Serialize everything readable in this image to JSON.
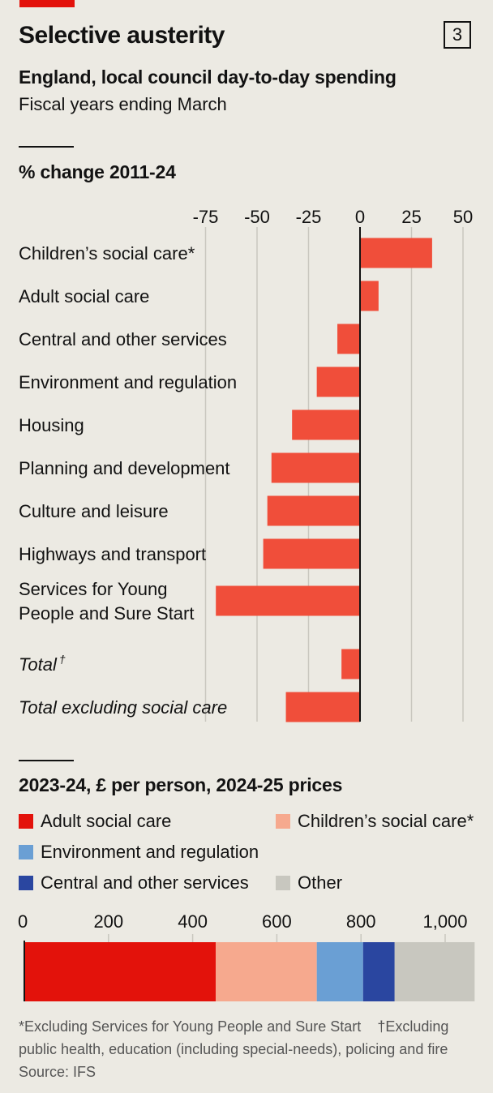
{
  "header": {
    "title": "Selective austerity",
    "badge": "3",
    "subtitle": "England, local council day-to-day spending",
    "subsubtitle": "Fiscal years ending March"
  },
  "colors": {
    "accent": "#E3120B",
    "bar_red": "#F04E3A",
    "adult_social_care": "#E3120B",
    "childrens_social_care": "#F6A98E",
    "environment_regulation": "#6A9FD4",
    "central_other": "#2A46A0",
    "other": "#C8C7BF"
  },
  "footnotes": {
    "note1": "*Excluding Services for Young People and Sure Start",
    "note2": "†Excluding public health, education (including special-needs), policing and fire",
    "source": "Source: IFS"
  },
  "chart_data": [
    {
      "type": "bar",
      "orientation": "horizontal",
      "title": "% change 2011-24",
      "xlim": [
        -75,
        50
      ],
      "ticks": [
        "-75",
        "-50",
        "-25",
        "0",
        "25",
        "50"
      ],
      "tick_values": [
        -75,
        -50,
        -25,
        0,
        25,
        50
      ],
      "categories": [
        "Children’s social care*",
        "Adult social care",
        "Central and other services",
        "Environment and regulation",
        "Housing",
        "Planning and development",
        "Culture and leisure",
        "Highways and transport",
        "Services for Young People and Sure Start",
        "Total†",
        "Total excluding social care"
      ],
      "label_lines": [
        [
          "Children’s social care*"
        ],
        [
          "Adult social care"
        ],
        [
          "Central and other services"
        ],
        [
          "Environment and regulation"
        ],
        [
          "Housing"
        ],
        [
          "Planning and development"
        ],
        [
          "Culture and leisure"
        ],
        [
          "Highways and transport"
        ],
        [
          "Services for Young",
          "People and Sure Start"
        ],
        [
          "Total†"
        ],
        [
          "Total excluding social care"
        ]
      ],
      "italic": [
        false,
        false,
        false,
        false,
        false,
        false,
        false,
        false,
        false,
        true,
        true
      ],
      "values": [
        35,
        9,
        -11,
        -21,
        -33,
        -43,
        -45,
        -47,
        -70,
        -9,
        -36
      ],
      "grid": true
    },
    {
      "type": "bar",
      "orientation": "stacked-horizontal",
      "title": "2023-24, £ per person, 2024-25 prices",
      "xlim": [
        0,
        1070
      ],
      "ticks": [
        "0",
        "200",
        "400",
        "600",
        "800",
        "1,000"
      ],
      "tick_values": [
        0,
        200,
        400,
        600,
        800,
        1000
      ],
      "series": [
        {
          "name": "Adult social care",
          "value": 455
        },
        {
          "name": "Children’s social care*",
          "value": 240
        },
        {
          "name": "Environment and regulation",
          "value": 110
        },
        {
          "name": "Central and other services",
          "value": 75
        },
        {
          "name": "Other",
          "value": 190
        }
      ]
    }
  ]
}
